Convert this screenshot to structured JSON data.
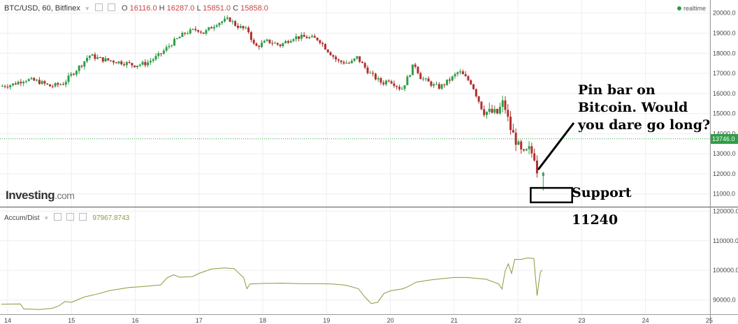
{
  "header": {
    "symbol": "BTC/USD, 60, Bitfinex",
    "o_label": "O",
    "o_value": "16116.0",
    "h_label": "H",
    "h_value": "16287.0",
    "l_label": "L",
    "l_value": "15851.0",
    "c_label": "C",
    "c_value": "15858.0",
    "realtime": "realtime"
  },
  "logo": {
    "main": "Investing",
    "suffix": ".com"
  },
  "indicator": {
    "name": "Accum/Dist",
    "value": "97967.8743"
  },
  "annotations": {
    "pin_bar_lines": [
      "Pin bar on",
      "Bitcoin. Would",
      "you dare go long?"
    ],
    "support_label": "Support",
    "support_value": "11240"
  },
  "current_price_tag": "13746.0",
  "colors": {
    "up": "#2e9e46",
    "down": "#b0302e",
    "ad_line": "#8a9a3c",
    "price_line": "#2e9e46"
  },
  "chart_data": [
    {
      "type": "candlestick",
      "title": "BTC/USD, 60, Bitfinex",
      "x_ticks": [
        "14",
        "15",
        "16",
        "17",
        "18",
        "19",
        "20",
        "21",
        "22",
        "23",
        "24",
        "25"
      ],
      "y_ticks": [
        "11000.0",
        "12000.0",
        "13000.0",
        "14000.0",
        "15000.0",
        "16000.0",
        "17000.0",
        "18000.0",
        "19000.0",
        "20000.0"
      ],
      "xlim": [
        13.88,
        25.45
      ],
      "ylim": [
        10400,
        20650
      ],
      "current_price": 13746,
      "support_box": {
        "x": [
          22.2,
          22.85
        ],
        "y": [
          10580,
          11300
        ]
      },
      "close_path": [
        [
          13.9,
          16350
        ],
        [
          14.1,
          16450
        ],
        [
          14.3,
          16700
        ],
        [
          14.5,
          16600
        ],
        [
          14.7,
          16350
        ],
        [
          14.9,
          16500
        ],
        [
          15.0,
          16850
        ],
        [
          15.2,
          17500
        ],
        [
          15.3,
          17900
        ],
        [
          15.5,
          17700
        ],
        [
          15.7,
          17600
        ],
        [
          15.9,
          17500
        ],
        [
          16.0,
          17400
        ],
        [
          16.2,
          17500
        ],
        [
          16.4,
          17900
        ],
        [
          16.6,
          18500
        ],
        [
          16.8,
          19000
        ],
        [
          17.0,
          19200
        ],
        [
          17.1,
          19000
        ],
        [
          17.3,
          19500
        ],
        [
          17.5,
          19700
        ],
        [
          17.6,
          19400
        ],
        [
          17.8,
          19100
        ],
        [
          17.9,
          18300
        ],
        [
          18.1,
          18600
        ],
        [
          18.3,
          18400
        ],
        [
          18.5,
          18800
        ],
        [
          18.7,
          18800
        ],
        [
          18.9,
          18700
        ],
        [
          19.0,
          18300
        ],
        [
          19.2,
          17600
        ],
        [
          19.4,
          17500
        ],
        [
          19.5,
          17800
        ],
        [
          19.7,
          17000
        ],
        [
          19.9,
          16500
        ],
        [
          20.0,
          16700
        ],
        [
          20.2,
          16200
        ],
        [
          20.3,
          16800
        ],
        [
          20.4,
          17500
        ],
        [
          20.5,
          16800
        ],
        [
          20.7,
          16400
        ],
        [
          20.8,
          16300
        ],
        [
          21.0,
          16800
        ],
        [
          21.1,
          17100
        ],
        [
          21.3,
          16500
        ],
        [
          21.4,
          15700
        ],
        [
          21.5,
          15100
        ],
        [
          21.7,
          15000
        ],
        [
          21.8,
          15600
        ],
        [
          21.9,
          14300
        ],
        [
          22.0,
          13600
        ],
        [
          22.1,
          12900
        ],
        [
          22.2,
          13200
        ],
        [
          22.3,
          12800
        ],
        [
          22.35,
          11600
        ]
      ]
    },
    {
      "type": "line",
      "series": [
        {
          "name": "Accum/Dist"
        }
      ],
      "y_ticks": [
        "90000.0",
        "100000.0",
        "110000.0",
        "120000.0"
      ],
      "xlim": [
        13.88,
        25.45
      ],
      "ylim": [
        85200,
        121500
      ],
      "points": [
        [
          13.9,
          88600
        ],
        [
          14.2,
          88700
        ],
        [
          14.25,
          87000
        ],
        [
          14.5,
          86800
        ],
        [
          14.7,
          87200
        ],
        [
          14.8,
          88000
        ],
        [
          14.9,
          89500
        ],
        [
          15.0,
          89200
        ],
        [
          15.2,
          91000
        ],
        [
          15.4,
          92000
        ],
        [
          15.6,
          93200
        ],
        [
          15.9,
          94200
        ],
        [
          16.1,
          94500
        ],
        [
          16.4,
          95100
        ],
        [
          16.5,
          97500
        ],
        [
          16.6,
          98500
        ],
        [
          16.7,
          97700
        ],
        [
          16.9,
          97900
        ],
        [
          17.0,
          99000
        ],
        [
          17.2,
          100500
        ],
        [
          17.4,
          100800
        ],
        [
          17.55,
          100600
        ],
        [
          17.7,
          97500
        ],
        [
          17.75,
          93800
        ],
        [
          17.8,
          95400
        ],
        [
          18.0,
          95600
        ],
        [
          18.3,
          95700
        ],
        [
          18.6,
          95500
        ],
        [
          18.9,
          95500
        ],
        [
          19.1,
          95400
        ],
        [
          19.3,
          95000
        ],
        [
          19.5,
          93800
        ],
        [
          19.6,
          91000
        ],
        [
          19.7,
          88800
        ],
        [
          19.8,
          89200
        ],
        [
          19.9,
          92200
        ],
        [
          20.0,
          93100
        ],
        [
          20.2,
          93800
        ],
        [
          20.3,
          94800
        ],
        [
          20.4,
          96000
        ],
        [
          20.6,
          96700
        ],
        [
          20.8,
          97200
        ],
        [
          21.0,
          97600
        ],
        [
          21.2,
          97600
        ],
        [
          21.5,
          97000
        ],
        [
          21.7,
          95400
        ],
        [
          21.75,
          93700
        ],
        [
          21.8,
          99900
        ],
        [
          21.85,
          102200
        ],
        [
          21.9,
          99000
        ],
        [
          21.95,
          103700
        ],
        [
          22.05,
          103700
        ],
        [
          22.15,
          104200
        ],
        [
          22.25,
          104000
        ],
        [
          22.3,
          91500
        ],
        [
          22.35,
          99300
        ],
        [
          22.38,
          100200
        ]
      ]
    }
  ]
}
